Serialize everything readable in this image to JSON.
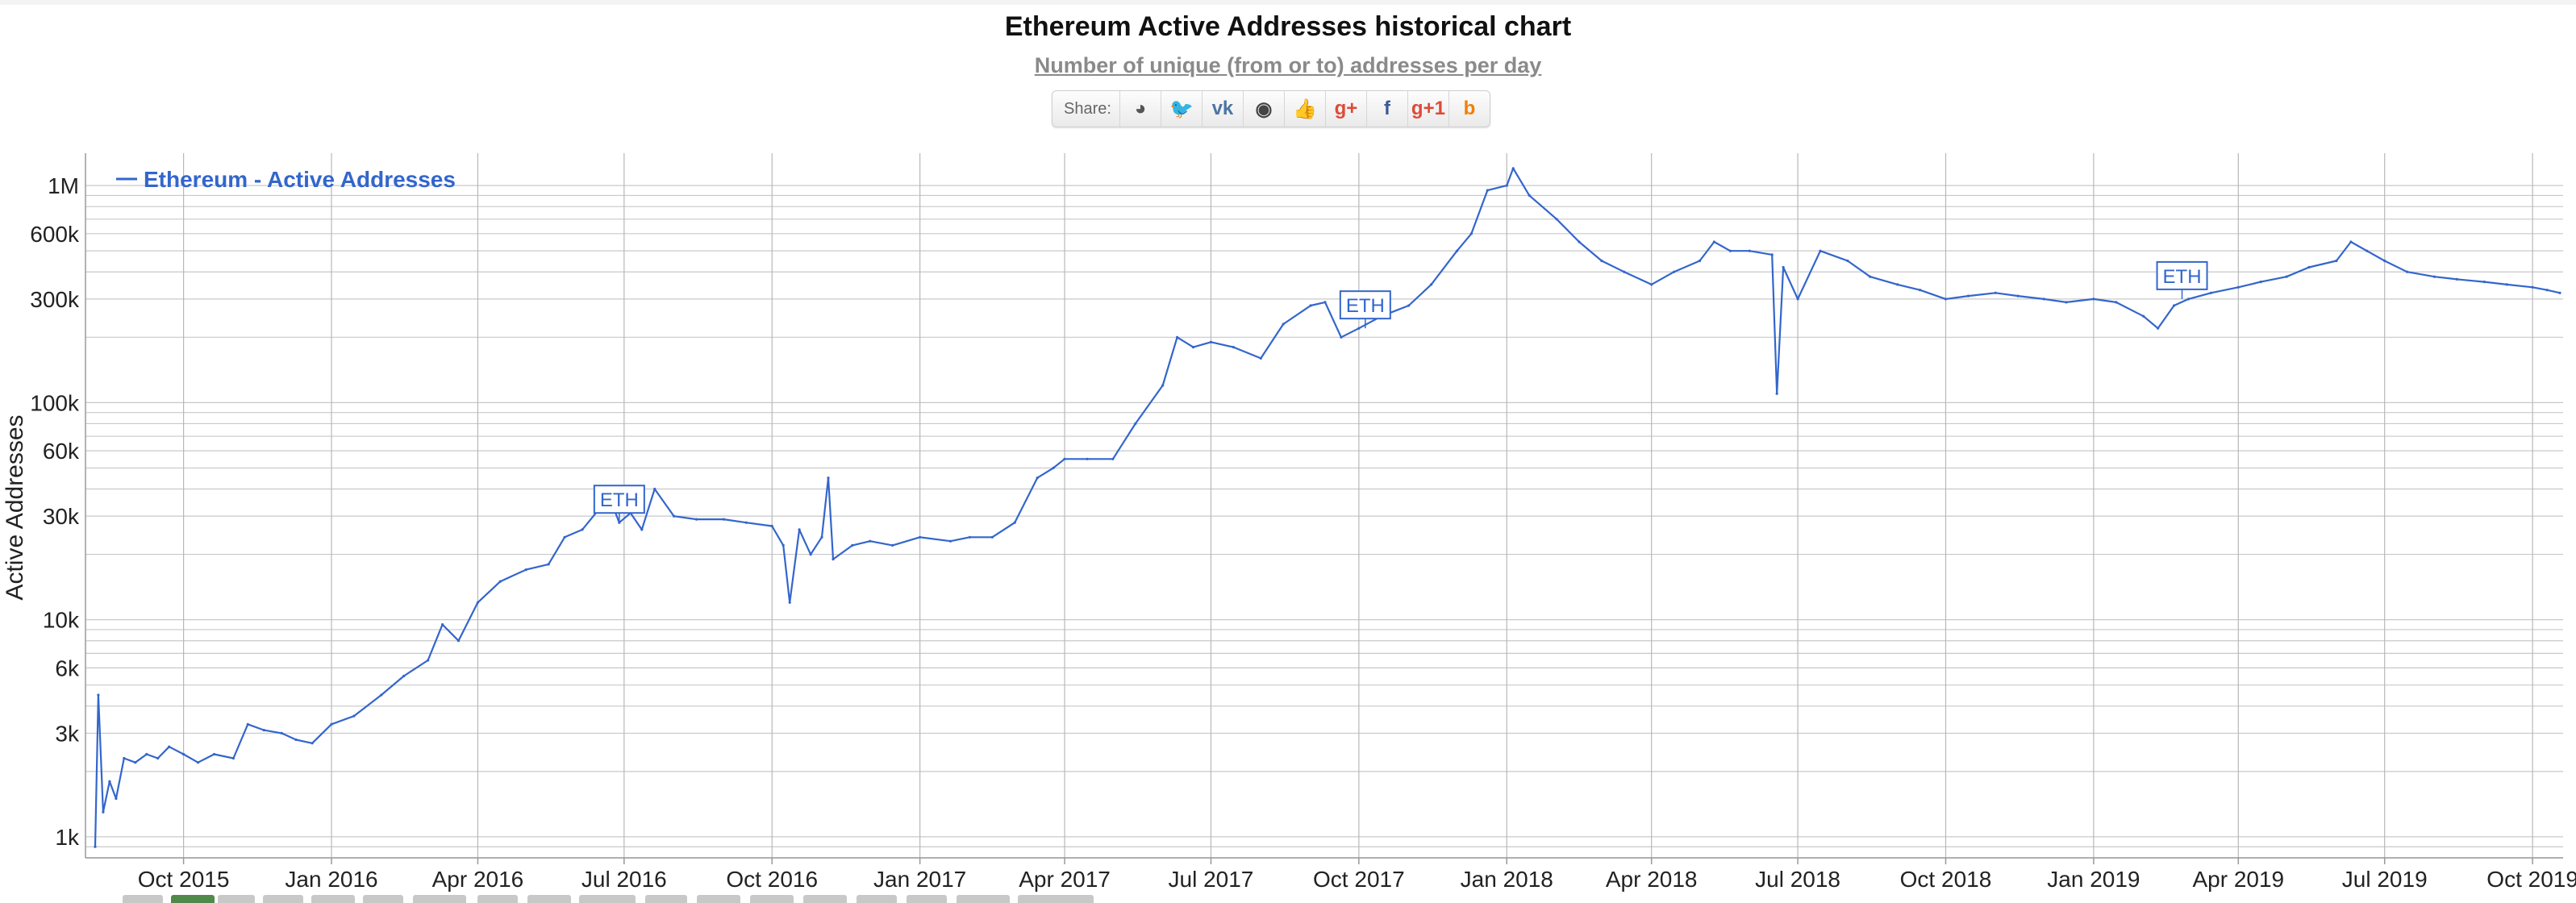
{
  "page": {
    "title": "Ethereum Active Addresses historical chart",
    "subtitle": "Number of unique (from or to) addresses per day"
  },
  "share": {
    "label": "Share:",
    "buttons": [
      {
        "name": "reddit",
        "glyph": "◕",
        "color": "#555555"
      },
      {
        "name": "twitter",
        "glyph": "🐦",
        "color": "#55acee"
      },
      {
        "name": "vk",
        "glyph": "vk",
        "color": "#4c75a3"
      },
      {
        "name": "weibo",
        "glyph": "◉",
        "color": "#444444"
      },
      {
        "name": "like",
        "glyph": "👍",
        "color": "#3b5998"
      },
      {
        "name": "google-plus",
        "glyph": "g+",
        "color": "#dd4b39"
      },
      {
        "name": "facebook",
        "glyph": "f",
        "color": "#3b5998"
      },
      {
        "name": "google-plus-one",
        "glyph": "g+1",
        "color": "#dd4b39"
      },
      {
        "name": "blogger",
        "glyph": "b",
        "color": "#f57d00"
      }
    ]
  },
  "chart_data": {
    "type": "line",
    "title": "Ethereum Active Addresses historical chart",
    "subtitle": "Number of unique (from or to) addresses per day",
    "ylabel": "Active Addresses",
    "xlabel": "",
    "y_scale": "log",
    "ylim": [
      800,
      1350000
    ],
    "xlim": [
      "2015-08-01",
      "2019-10-20"
    ],
    "grid": true,
    "legend": "top-left",
    "line_color": "#3366cc",
    "ytick_labels": [
      {
        "value": 1000,
        "label": "1k"
      },
      {
        "value": 3000,
        "label": "3k"
      },
      {
        "value": 6000,
        "label": "6k"
      },
      {
        "value": 10000,
        "label": "10k"
      },
      {
        "value": 30000,
        "label": "30k"
      },
      {
        "value": 60000,
        "label": "60k"
      },
      {
        "value": 100000,
        "label": "100k"
      },
      {
        "value": 300000,
        "label": "300k"
      },
      {
        "value": 600000,
        "label": "600k"
      },
      {
        "value": 1000000,
        "label": "1M"
      }
    ],
    "xtick_labels": [
      {
        "date": "2015-10-01",
        "label": "Oct 2015"
      },
      {
        "date": "2016-01-01",
        "label": "Jan 2016"
      },
      {
        "date": "2016-04-01",
        "label": "Apr 2016"
      },
      {
        "date": "2016-07-01",
        "label": "Jul 2016"
      },
      {
        "date": "2016-10-01",
        "label": "Oct 2016"
      },
      {
        "date": "2017-01-01",
        "label": "Jan 2017"
      },
      {
        "date": "2017-04-01",
        "label": "Apr 2017"
      },
      {
        "date": "2017-07-01",
        "label": "Jul 2017"
      },
      {
        "date": "2017-10-01",
        "label": "Oct 2017"
      },
      {
        "date": "2018-01-01",
        "label": "Jan 2018"
      },
      {
        "date": "2018-04-01",
        "label": "Apr 2018"
      },
      {
        "date": "2018-07-01",
        "label": "Jul 2018"
      },
      {
        "date": "2018-10-01",
        "label": "Oct 2018"
      },
      {
        "date": "2019-01-01",
        "label": "Jan 2019"
      },
      {
        "date": "2019-04-01",
        "label": "Apr 2019"
      },
      {
        "date": "2019-07-01",
        "label": "Jul 2019"
      },
      {
        "date": "2019-10-01",
        "label": "Oct 2019"
      }
    ],
    "series": [
      {
        "name": "Ethereum - Active Addresses",
        "points": [
          [
            "2015-08-07",
            900
          ],
          [
            "2015-08-09",
            4500
          ],
          [
            "2015-08-12",
            1300
          ],
          [
            "2015-08-16",
            1800
          ],
          [
            "2015-08-20",
            1500
          ],
          [
            "2015-08-25",
            2300
          ],
          [
            "2015-09-01",
            2200
          ],
          [
            "2015-09-08",
            2400
          ],
          [
            "2015-09-15",
            2300
          ],
          [
            "2015-09-22",
            2600
          ],
          [
            "2015-10-01",
            2400
          ],
          [
            "2015-10-10",
            2200
          ],
          [
            "2015-10-20",
            2400
          ],
          [
            "2015-11-01",
            2300
          ],
          [
            "2015-11-10",
            3300
          ],
          [
            "2015-11-20",
            3100
          ],
          [
            "2015-12-01",
            3000
          ],
          [
            "2015-12-10",
            2800
          ],
          [
            "2015-12-20",
            2700
          ],
          [
            "2016-01-01",
            3300
          ],
          [
            "2016-01-15",
            3600
          ],
          [
            "2016-02-01",
            4500
          ],
          [
            "2016-02-15",
            5500
          ],
          [
            "2016-03-01",
            6500
          ],
          [
            "2016-03-10",
            9500
          ],
          [
            "2016-03-20",
            8000
          ],
          [
            "2016-04-01",
            12000
          ],
          [
            "2016-04-15",
            15000
          ],
          [
            "2016-05-01",
            17000
          ],
          [
            "2016-05-15",
            18000
          ],
          [
            "2016-05-25",
            24000
          ],
          [
            "2016-06-05",
            26000
          ],
          [
            "2016-06-15",
            32000
          ],
          [
            "2016-06-20",
            40000
          ],
          [
            "2016-06-28",
            28000
          ],
          [
            "2016-07-05",
            31000
          ],
          [
            "2016-07-12",
            26000
          ],
          [
            "2016-07-20",
            40000
          ],
          [
            "2016-08-01",
            30000
          ],
          [
            "2016-08-15",
            29000
          ],
          [
            "2016-09-01",
            29000
          ],
          [
            "2016-09-15",
            28000
          ],
          [
            "2016-10-01",
            27000
          ],
          [
            "2016-10-08",
            22000
          ],
          [
            "2016-10-12",
            12000
          ],
          [
            "2016-10-18",
            26000
          ],
          [
            "2016-10-25",
            20000
          ],
          [
            "2016-11-01",
            24000
          ],
          [
            "2016-11-05",
            45000
          ],
          [
            "2016-11-08",
            19000
          ],
          [
            "2016-11-20",
            22000
          ],
          [
            "2016-12-01",
            23000
          ],
          [
            "2016-12-15",
            22000
          ],
          [
            "2017-01-01",
            24000
          ],
          [
            "2017-01-20",
            23000
          ],
          [
            "2017-02-01",
            24000
          ],
          [
            "2017-02-15",
            24000
          ],
          [
            "2017-03-01",
            28000
          ],
          [
            "2017-03-15",
            45000
          ],
          [
            "2017-03-25",
            50000
          ],
          [
            "2017-04-01",
            55000
          ],
          [
            "2017-04-15",
            55000
          ],
          [
            "2017-05-01",
            55000
          ],
          [
            "2017-05-15",
            80000
          ],
          [
            "2017-06-01",
            120000
          ],
          [
            "2017-06-10",
            200000
          ],
          [
            "2017-06-20",
            180000
          ],
          [
            "2017-07-01",
            190000
          ],
          [
            "2017-07-15",
            180000
          ],
          [
            "2017-08-01",
            160000
          ],
          [
            "2017-08-15",
            230000
          ],
          [
            "2017-09-01",
            280000
          ],
          [
            "2017-09-10",
            290000
          ],
          [
            "2017-09-20",
            200000
          ],
          [
            "2017-10-01",
            220000
          ],
          [
            "2017-10-15",
            250000
          ],
          [
            "2017-11-01",
            280000
          ],
          [
            "2017-11-15",
            350000
          ],
          [
            "2017-12-01",
            500000
          ],
          [
            "2017-12-10",
            600000
          ],
          [
            "2017-12-20",
            950000
          ],
          [
            "2018-01-01",
            1000000
          ],
          [
            "2018-01-05",
            1200000
          ],
          [
            "2018-01-15",
            900000
          ],
          [
            "2018-02-01",
            700000
          ],
          [
            "2018-02-15",
            550000
          ],
          [
            "2018-03-01",
            450000
          ],
          [
            "2018-03-15",
            400000
          ],
          [
            "2018-04-01",
            350000
          ],
          [
            "2018-04-15",
            400000
          ],
          [
            "2018-05-01",
            450000
          ],
          [
            "2018-05-10",
            550000
          ],
          [
            "2018-05-20",
            500000
          ],
          [
            "2018-06-01",
            500000
          ],
          [
            "2018-06-15",
            480000
          ],
          [
            "2018-06-18",
            110000
          ],
          [
            "2018-06-22",
            420000
          ],
          [
            "2018-07-01",
            300000
          ],
          [
            "2018-07-15",
            500000
          ],
          [
            "2018-08-01",
            450000
          ],
          [
            "2018-08-15",
            380000
          ],
          [
            "2018-09-01",
            350000
          ],
          [
            "2018-09-15",
            330000
          ],
          [
            "2018-10-01",
            300000
          ],
          [
            "2018-10-15",
            310000
          ],
          [
            "2018-11-01",
            320000
          ],
          [
            "2018-11-15",
            310000
          ],
          [
            "2018-12-01",
            300000
          ],
          [
            "2018-12-15",
            290000
          ],
          [
            "2019-01-01",
            300000
          ],
          [
            "2019-01-15",
            290000
          ],
          [
            "2019-02-01",
            250000
          ],
          [
            "2019-02-10",
            220000
          ],
          [
            "2019-02-20",
            280000
          ],
          [
            "2019-03-01",
            300000
          ],
          [
            "2019-03-15",
            320000
          ],
          [
            "2019-04-01",
            340000
          ],
          [
            "2019-04-15",
            360000
          ],
          [
            "2019-05-01",
            380000
          ],
          [
            "2019-05-15",
            420000
          ],
          [
            "2019-06-01",
            450000
          ],
          [
            "2019-06-10",
            550000
          ],
          [
            "2019-06-20",
            500000
          ],
          [
            "2019-07-01",
            450000
          ],
          [
            "2019-07-15",
            400000
          ],
          [
            "2019-08-01",
            380000
          ],
          [
            "2019-08-15",
            370000
          ],
          [
            "2019-09-01",
            360000
          ],
          [
            "2019-09-15",
            350000
          ],
          [
            "2019-10-01",
            340000
          ],
          [
            "2019-10-10",
            330000
          ],
          [
            "2019-10-18",
            320000
          ]
        ]
      }
    ],
    "flags": [
      {
        "date": "2016-06-28",
        "label": "ETH"
      },
      {
        "date": "2017-10-05",
        "label": "ETH"
      },
      {
        "date": "2019-02-25",
        "label": "ETH"
      }
    ]
  }
}
